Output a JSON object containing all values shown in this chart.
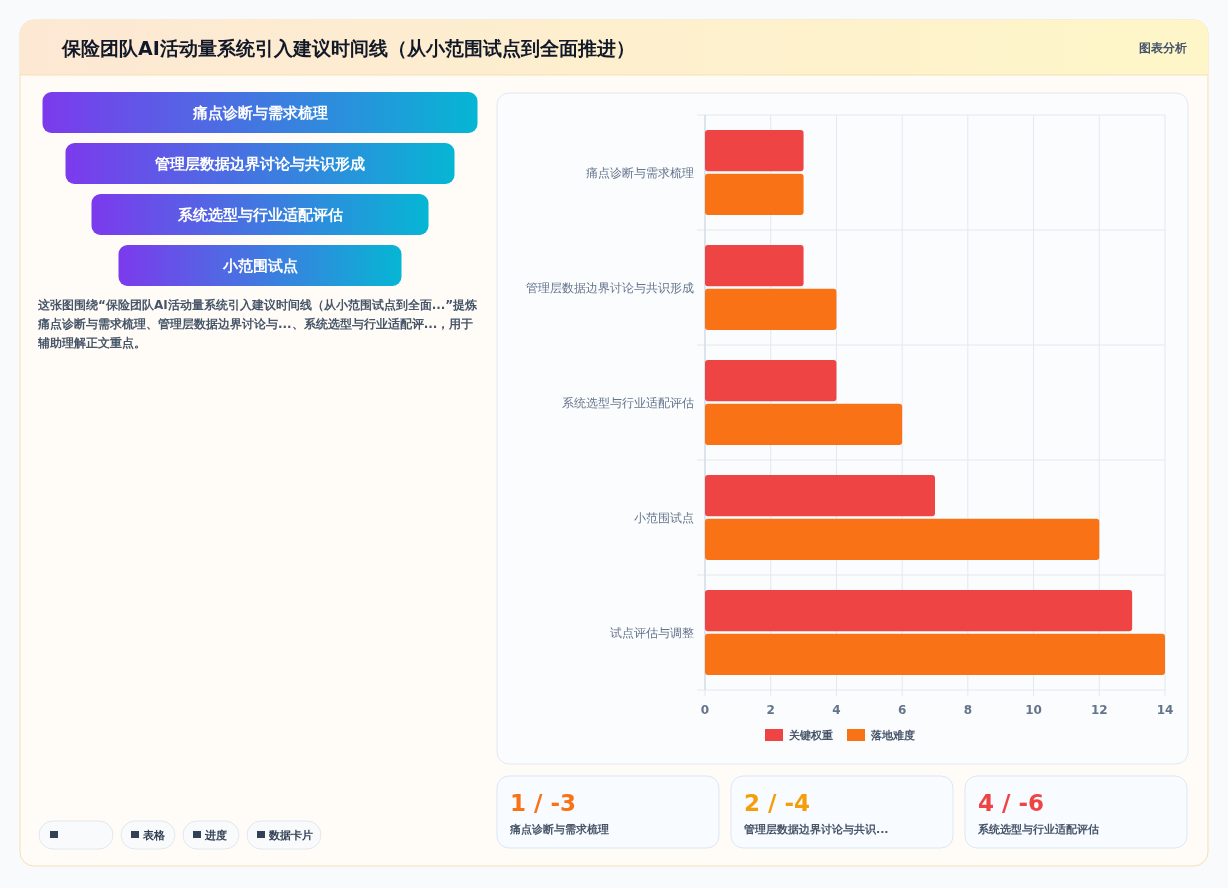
{
  "chart_data": [
    {
      "type": "other",
      "title": "保险团队AI活动量系统引入建议时间线（从小范围试点到全面推进）",
      "categories": [
        "痛点诊断与需求梳理",
        "管理层数据边界讨论与共识形成",
        "系统选型与行业适配评估",
        "小范围试点"
      ],
      "annotations": [
        "图表分析",
        "这张图围绕“保险团队AI活动量系统引入建议时间线（从小范围试点到全面...”提炼痛点诊断与需求梳理、管理层数据边界讨论与...、系统选型与行业适配评...，用于辅助理解正文重点。",
        "表格",
        "进度",
        "数据卡片"
      ]
    },
    {
      "type": "bar",
      "orientation": "horizontal",
      "categories": [
        "痛点诊断与需求梳理",
        "管理层数据边界讨论与共识形成",
        "系统选型与行业适配评估",
        "小范围试点",
        "试点评估与调整"
      ],
      "series": [
        {
          "name": "关键权重",
          "color": "#ef4444",
          "values": [
            3,
            3,
            4,
            7,
            13
          ]
        },
        {
          "name": "落地难度",
          "color": "#f97316",
          "values": [
            3,
            4,
            6,
            12,
            14
          ]
        }
      ],
      "xlim": [
        0,
        14
      ],
      "xticks": [
        0,
        2,
        4,
        6,
        8,
        10,
        12,
        14
      ],
      "grid": true,
      "legend": "bottom"
    },
    {
      "type": "other",
      "categories": [
        "痛点诊断与需求梳理",
        "管理层数据边界讨论与共识...",
        "系统选型与行业适配评估"
      ],
      "annotations": [
        "1 / -3",
        "2 / -4",
        "4 / -6"
      ]
    }
  ]
}
